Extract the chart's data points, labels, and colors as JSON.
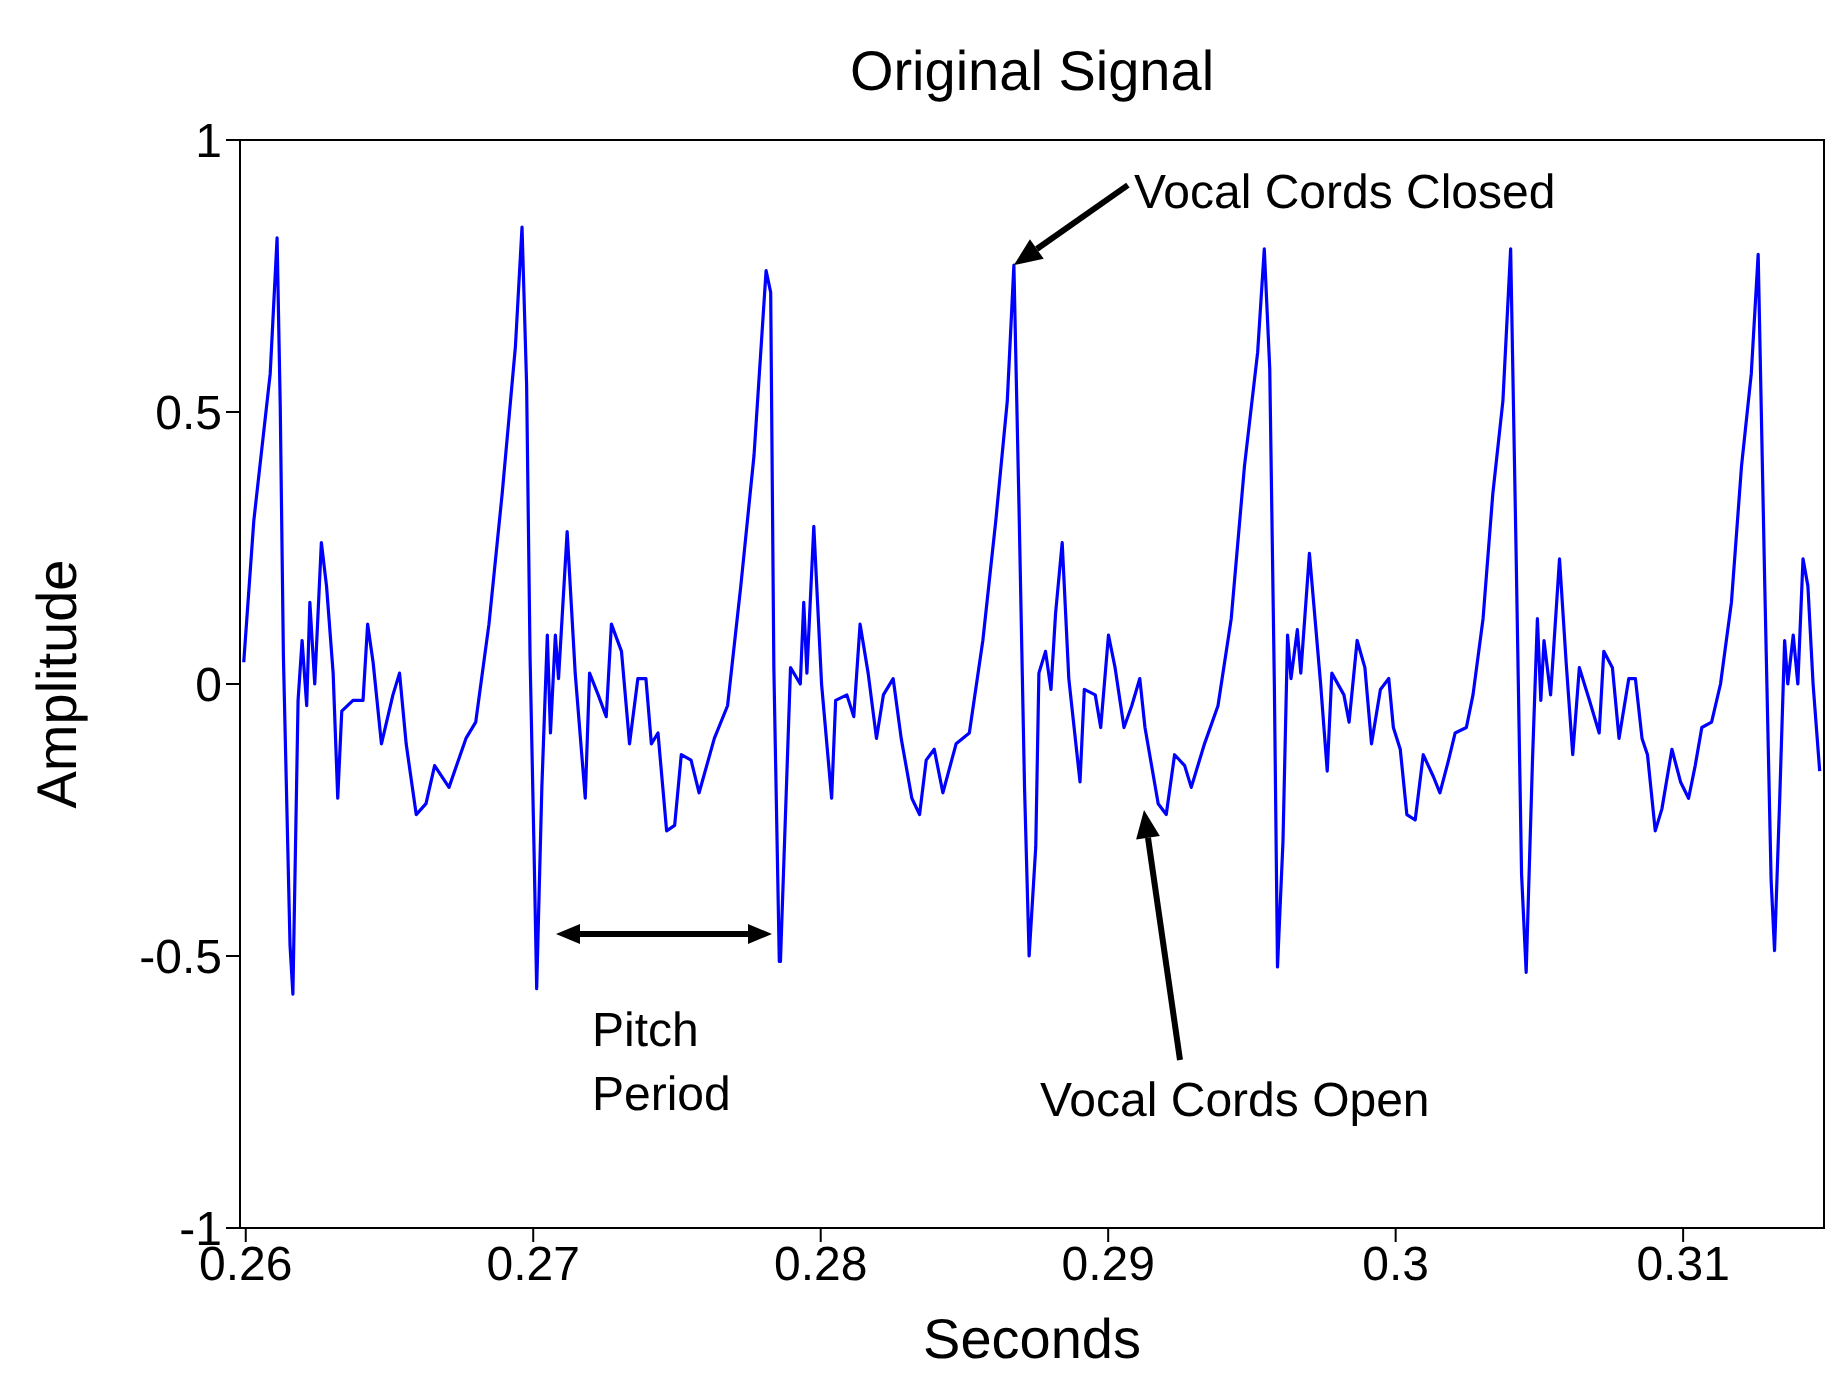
{
  "chart_data": {
    "type": "line",
    "title": "Original Signal",
    "xlabel": "Seconds",
    "ylabel": "Amplitude",
    "color": "#0000ff",
    "line_style": "solid",
    "marker": "none",
    "xlim": [
      0.2598,
      0.3149
    ],
    "ylim": [
      -1,
      1
    ],
    "xticks": [
      0.26,
      0.27,
      0.28,
      0.29,
      0.3,
      0.31
    ],
    "yticks": [
      -1,
      -0.5,
      0,
      0.5,
      1
    ],
    "annotations": [
      {
        "text": "Vocal Cords Closed",
        "x": 0.28672,
        "y": 0.77
      },
      "Vocal Cords Open",
      "Pitch Period"
    ],
    "x": [
      0.25993,
      0.26028,
      0.26085,
      0.26109,
      0.2612,
      0.26131,
      0.26154,
      0.26164,
      0.26182,
      0.26196,
      0.26212,
      0.26223,
      0.2624,
      0.26263,
      0.26281,
      0.26304,
      0.2632,
      0.26334,
      0.26373,
      0.26408,
      0.26424,
      0.26443,
      0.26472,
      0.26512,
      0.26535,
      0.26558,
      0.26593,
      0.26627,
      0.26657,
      0.26707,
      0.26766,
      0.268,
      0.26846,
      0.26892,
      0.26938,
      0.26961,
      0.26977,
      0.26989,
      0.27003,
      0.27012,
      0.2703,
      0.27049,
      0.2706,
      0.27077,
      0.27088,
      0.27118,
      0.27146,
      0.27181,
      0.27196,
      0.27226,
      0.27254,
      0.27272,
      0.27307,
      0.27335,
      0.27364,
      0.27392,
      0.27411,
      0.27434,
      0.27464,
      0.27492,
      0.27515,
      0.27549,
      0.27577,
      0.2763,
      0.27676,
      0.27722,
      0.27768,
      0.2781,
      0.27826,
      0.27837,
      0.27856,
      0.2786,
      0.27895,
      0.27929,
      0.27941,
      0.27952,
      0.27976,
      0.28003,
      0.28038,
      0.28052,
      0.28091,
      0.28115,
      0.28137,
      0.28165,
      0.28194,
      0.28218,
      0.28252,
      0.2828,
      0.28317,
      0.28344,
      0.28367,
      0.28395,
      0.28425,
      0.28471,
      0.28517,
      0.28564,
      0.28609,
      0.28649,
      0.28672,
      0.2869,
      0.28709,
      0.28725,
      0.28748,
      0.28759,
      0.28782,
      0.28801,
      0.28817,
      0.2884,
      0.28863,
      0.28902,
      0.28917,
      0.28955,
      0.28974,
      0.29001,
      0.29024,
      0.29055,
      0.29082,
      0.2911,
      0.29128,
      0.29174,
      0.29202,
      0.29231,
      0.29266,
      0.29289,
      0.29335,
      0.29382,
      0.29428,
      0.29474,
      0.2952,
      0.29543,
      0.29562,
      0.29578,
      0.29589,
      0.29608,
      0.29624,
      0.29636,
      0.29658,
      0.2967,
      0.297,
      0.29739,
      0.29762,
      0.29778,
      0.2982,
      0.29838,
      0.29866,
      0.29893,
      0.29916,
      0.29947,
      0.29976,
      0.29992,
      0.30016,
      0.30039,
      0.30068,
      0.30096,
      0.30131,
      0.30154,
      0.30184,
      0.30207,
      0.30246,
      0.30269,
      0.30304,
      0.30338,
      0.30373,
      0.304,
      0.30419,
      0.30438,
      0.30454,
      0.30476,
      0.30493,
      0.30505,
      0.30516,
      0.30539,
      0.3057,
      0.30593,
      0.30616,
      0.30639,
      0.30674,
      0.30708,
      0.30724,
      0.30754,
      0.30777,
      0.30811,
      0.30834,
      0.30857,
      0.30876,
      0.30903,
      0.30926,
      0.30961,
      0.30991,
      0.31019,
      0.31042,
      0.31065,
      0.31099,
      0.3113,
      0.31168,
      0.31203,
      0.31237,
      0.31261,
      0.31284,
      0.31306,
      0.31318,
      0.31336,
      0.31353,
      0.31364,
      0.31383,
      0.31399,
      0.31417,
      0.31434,
      0.31452,
      0.31475
    ],
    "values": [
      0.04,
      0.3,
      0.57,
      0.82,
      0.51,
      0.05,
      -0.48,
      -0.57,
      -0.03,
      0.08,
      -0.04,
      0.15,
      0.0,
      0.26,
      0.18,
      0.02,
      -0.21,
      -0.05,
      -0.03,
      -0.03,
      0.11,
      0.04,
      -0.11,
      -0.02,
      0.02,
      -0.11,
      -0.24,
      -0.22,
      -0.15,
      -0.19,
      -0.1,
      -0.07,
      0.11,
      0.35,
      0.62,
      0.84,
      0.55,
      0.05,
      -0.31,
      -0.56,
      -0.19,
      0.09,
      -0.09,
      0.09,
      0.01,
      0.28,
      0.02,
      -0.21,
      0.02,
      -0.02,
      -0.06,
      0.11,
      0.06,
      -0.11,
      0.01,
      0.01,
      -0.11,
      -0.09,
      -0.27,
      -0.26,
      -0.13,
      -0.14,
      -0.2,
      -0.1,
      -0.04,
      0.18,
      0.42,
      0.76,
      0.72,
      0.03,
      -0.51,
      -0.51,
      0.03,
      0.0,
      0.15,
      0.02,
      0.29,
      0.0,
      -0.21,
      -0.03,
      -0.02,
      -0.06,
      0.11,
      0.02,
      -0.1,
      -0.02,
      0.01,
      -0.1,
      -0.21,
      -0.24,
      -0.14,
      -0.12,
      -0.2,
      -0.11,
      -0.09,
      0.08,
      0.3,
      0.52,
      0.77,
      0.32,
      -0.19,
      -0.5,
      -0.3,
      0.02,
      0.06,
      -0.01,
      0.13,
      0.26,
      0.01,
      -0.18,
      -0.01,
      -0.02,
      -0.08,
      0.09,
      0.03,
      -0.08,
      -0.04,
      0.01,
      -0.08,
      -0.22,
      -0.24,
      -0.13,
      -0.15,
      -0.19,
      -0.11,
      -0.04,
      0.12,
      0.4,
      0.61,
      0.8,
      0.58,
      0.0,
      -0.52,
      -0.29,
      0.09,
      0.01,
      0.1,
      0.02,
      0.24,
      0.0,
      -0.16,
      0.02,
      -0.02,
      -0.07,
      0.08,
      0.03,
      -0.11,
      -0.01,
      0.01,
      -0.08,
      -0.12,
      -0.24,
      -0.25,
      -0.13,
      -0.17,
      -0.2,
      -0.14,
      -0.09,
      -0.08,
      -0.02,
      0.12,
      0.35,
      0.52,
      0.8,
      0.24,
      -0.35,
      -0.53,
      -0.14,
      0.12,
      -0.03,
      0.08,
      -0.02,
      0.23,
      0.04,
      -0.13,
      0.03,
      -0.03,
      -0.09,
      0.06,
      0.03,
      -0.1,
      0.01,
      0.01,
      -0.1,
      -0.13,
      -0.27,
      -0.23,
      -0.12,
      -0.18,
      -0.21,
      -0.15,
      -0.08,
      -0.07,
      0.0,
      0.15,
      0.4,
      0.57,
      0.79,
      0.18,
      -0.36,
      -0.49,
      -0.21,
      0.08,
      0.0,
      0.09,
      0.0,
      0.23,
      0.18,
      0.0,
      -0.16
    ]
  }
}
